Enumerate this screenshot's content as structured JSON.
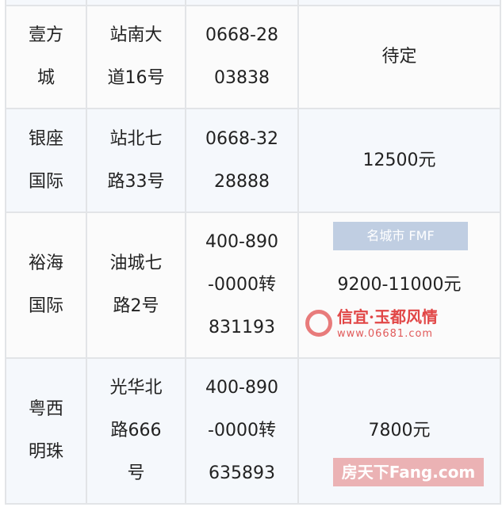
{
  "table": {
    "rows": [
      {
        "name": "",
        "address": "",
        "phone": "",
        "price": ""
      },
      {
        "name": "壹方\n城",
        "address": "站南大\n道16号",
        "phone": "0668-28\n03838",
        "price": "待定"
      },
      {
        "name": "银座\n国际",
        "address": "站北七\n路33号",
        "phone": "0668-32\n28888",
        "price": "12500元"
      },
      {
        "name": "裕海\n国际",
        "address": "油城七\n路2号",
        "phone": "400-890\n-0000转\n831193",
        "price": "9200-11000元"
      },
      {
        "name": "粤西\n明珠",
        "address": "光华北\n路666\n号",
        "phone": "400-890\n-0000转\n635893",
        "price": "7800元"
      }
    ]
  },
  "watermarks": {
    "fang": "房天下Fang.com",
    "city": "名城市 FMF",
    "xinyi": "信宜·玉都风情",
    "url": "www.06681.com"
  },
  "colors": {
    "border": "#e2e4e7",
    "row_alt": "#f5f8fc",
    "watermark_red": "#e14646"
  }
}
